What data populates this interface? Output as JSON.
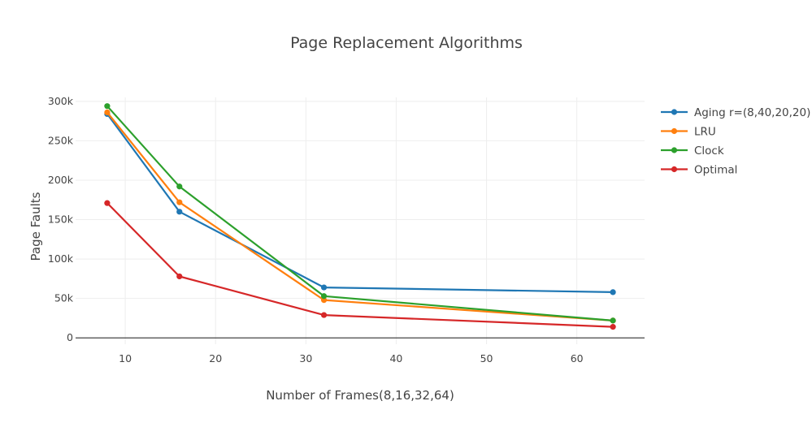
{
  "chart_data": {
    "type": "line",
    "title": "Page Replacement Algorithms",
    "xlabel": "Number of Frames(8,16,32,64)",
    "ylabel": "Page Faults",
    "x": [
      8,
      16,
      32,
      64
    ],
    "xlim": [
      4.5,
      67.5
    ],
    "ylim": [
      -8000,
      305000
    ],
    "xticks": [
      10,
      20,
      30,
      40,
      50,
      60
    ],
    "yticks": [
      0,
      50000,
      100000,
      150000,
      200000,
      250000,
      300000
    ],
    "ytick_labels": [
      "0",
      "50k",
      "100k",
      "150k",
      "200k",
      "250k",
      "300k"
    ],
    "grid": true,
    "legend_position": "top-right",
    "series": [
      {
        "name": "Aging r=(8,40,20,20)",
        "color": "#1f77b4",
        "values": [
          284000,
          160000,
          64000,
          58000
        ]
      },
      {
        "name": "LRU",
        "color": "#ff7f0e",
        "values": [
          286000,
          172000,
          48000,
          22000
        ]
      },
      {
        "name": "Clock",
        "color": "#2ca02c",
        "values": [
          294000,
          192000,
          53000,
          22000
        ]
      },
      {
        "name": "Optimal",
        "color": "#d62728",
        "values": [
          171000,
          78000,
          29000,
          14000
        ]
      }
    ]
  }
}
